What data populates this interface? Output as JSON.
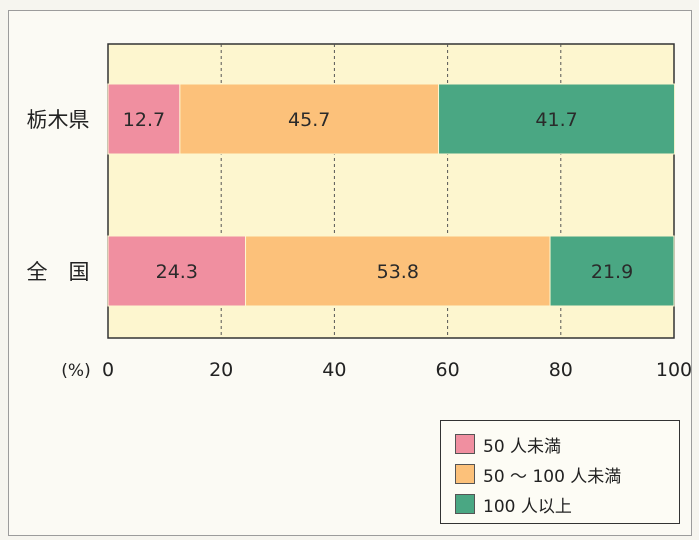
{
  "chart_data": {
    "type": "bar",
    "orientation": "horizontal",
    "stacked": true,
    "categories": [
      "栃木県",
      "全　国"
    ],
    "series": [
      {
        "name": "50 人未満",
        "values": [
          12.7,
          24.3
        ],
        "color": "#f08fa0"
      },
      {
        "name": "50 ～ 100 人未満",
        "values": [
          45.7,
          53.8
        ],
        "color": "#fcc17a"
      },
      {
        "name": "100 人以上",
        "values": [
          41.7,
          21.9
        ],
        "color": "#4aa783"
      }
    ],
    "xunit": "(%)",
    "xticks": [
      0,
      20,
      40,
      60,
      80,
      100
    ],
    "xlim": [
      0,
      100
    ],
    "grid": "vertical dashed",
    "legend": "bottom-right",
    "plot_background": "#fdf6cf"
  }
}
